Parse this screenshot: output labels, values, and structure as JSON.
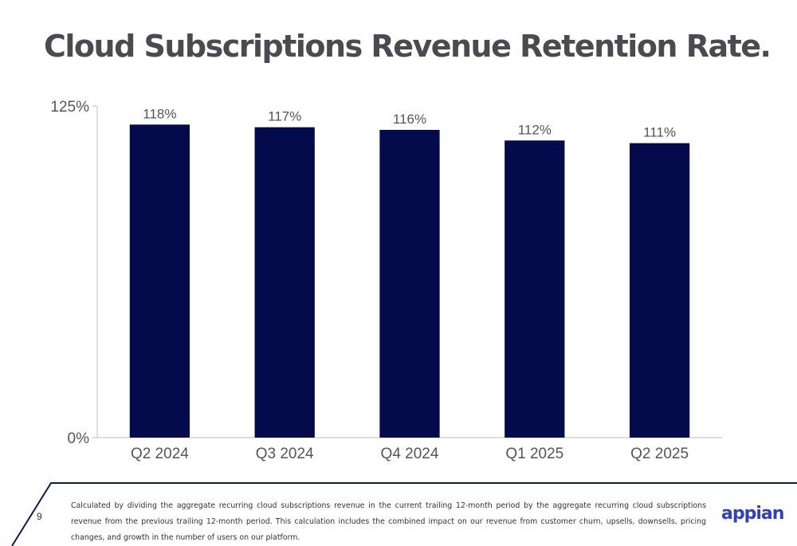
{
  "title": "Cloud Subscriptions Revenue Retention Rate.",
  "page_number": "9",
  "footnote": "Calculated by dividing the aggregate recurring cloud subscriptions revenue in the current trailing 12-month period by the aggregate recurring cloud subscriptions revenue from the previous trailing 12-month period. This calculation includes the combined impact on our revenue from customer churn, upsells, downsells, pricing changes, and growth in the number of users on our platform.",
  "logo_text": "appian",
  "colors": {
    "bar": "#050a4d",
    "accent": "#0c1a5c",
    "logo": "#2e3fbf"
  },
  "chart_data": {
    "type": "bar",
    "categories": [
      "Q2 2024",
      "Q3 2024",
      "Q4 2024",
      "Q1 2025",
      "Q2 2025"
    ],
    "values": [
      118,
      117,
      116,
      112,
      111
    ],
    "value_labels": [
      "118%",
      "117%",
      "116%",
      "112%",
      "111%"
    ],
    "ylim": [
      0,
      125
    ],
    "yticks": [
      0,
      125
    ],
    "ytick_labels": [
      "0%",
      "125%"
    ],
    "grid": false,
    "legend": "none",
    "xlabel": "",
    "ylabel": ""
  }
}
